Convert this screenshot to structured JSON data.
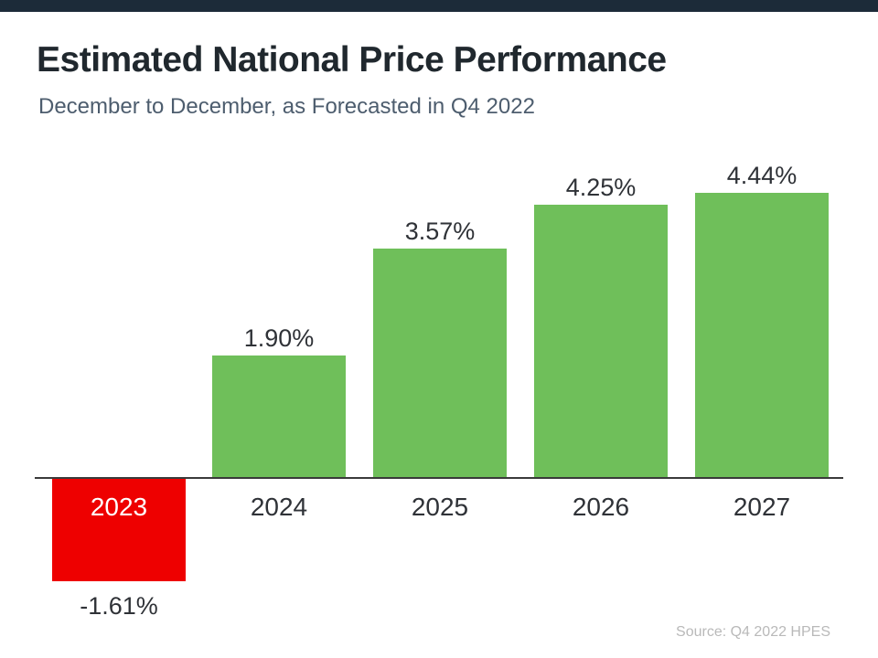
{
  "header": {
    "title": "Estimated National Price Performance",
    "subtitle": "December to December, as Forecasted in Q4 2022"
  },
  "footer": {
    "source": "Source: Q4 2022 HPES"
  },
  "colors": {
    "accent_bar": "#1C2B39",
    "positive_bar": "#6FBF5A",
    "negative_bar": "#EE0000",
    "title_text": "#20282E",
    "subtitle_text": "#4D5D6E",
    "axis_line": "#3A3A3A",
    "source_text": "#B9B9B9"
  },
  "chart_data": {
    "type": "bar",
    "title": "Estimated National Price Performance",
    "subtitle": "December to December, as Forecasted in Q4 2022",
    "categories": [
      "2023",
      "2024",
      "2025",
      "2026",
      "2027"
    ],
    "values": [
      -1.61,
      1.9,
      3.57,
      4.25,
      4.44
    ],
    "value_labels": [
      "-1.61%",
      "1.90%",
      "3.57%",
      "4.25%",
      "4.44%"
    ],
    "bar_colors": [
      "#EE0000",
      "#6FBF5A",
      "#6FBF5A",
      "#6FBF5A",
      "#6FBF5A"
    ],
    "unit": "%",
    "ylim": [
      -2,
      5
    ],
    "grid": false,
    "legend": false,
    "xlabel": "",
    "ylabel": ""
  }
}
